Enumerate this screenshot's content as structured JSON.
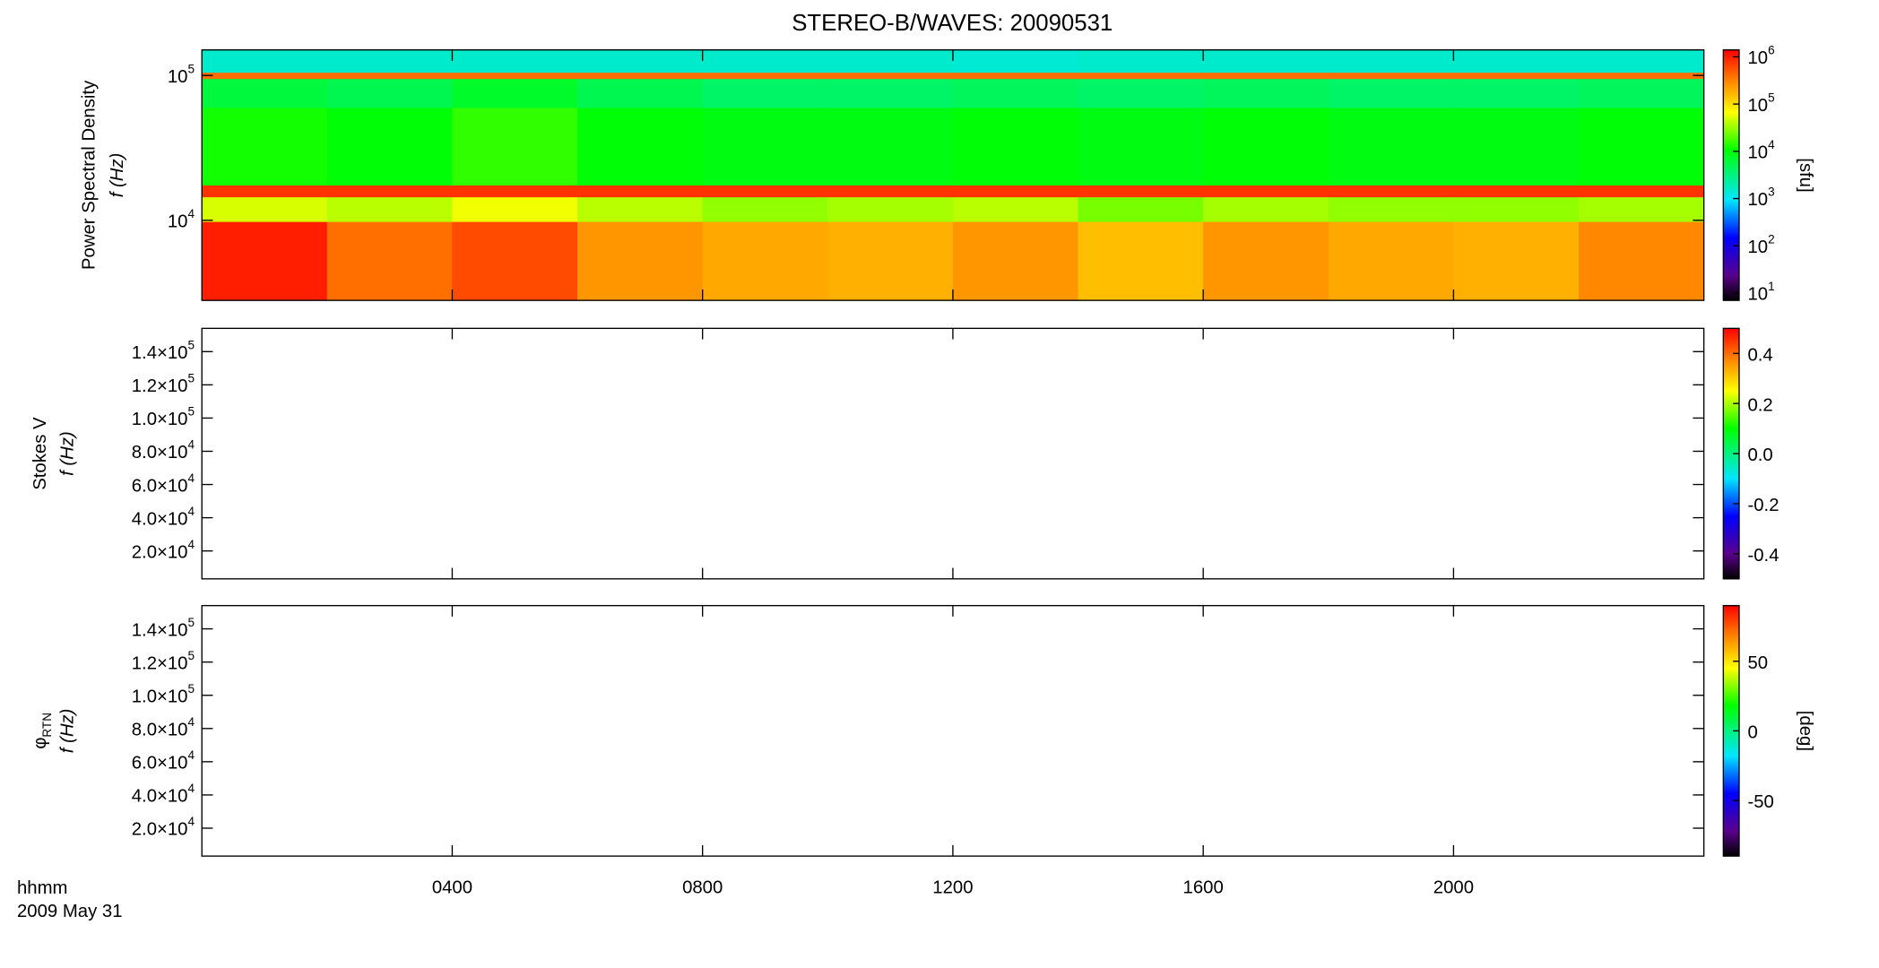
{
  "chart_data": [
    {
      "type": "heatmap",
      "title": "STEREO-B/WAVES: 20090531",
      "ylabel": "Power Spectral Density",
      "ylabel2": "f (Hz)",
      "ylog": true,
      "ylim": [
        2800,
        150000
      ],
      "yticks": [
        {
          "value": 10000,
          "label": "10",
          "exp": "4"
        },
        {
          "value": 100000,
          "label": "10",
          "exp": "5"
        }
      ],
      "xlim": [
        0,
        24
      ],
      "x_edges": [
        0,
        2,
        4,
        6,
        8,
        10,
        12,
        14,
        16,
        18,
        20,
        22,
        24
      ],
      "y_edges": [
        2800,
        9800,
        14500,
        17500,
        60000,
        95000,
        105000,
        150000
      ],
      "values": [
        [
          1000000,
          400000,
          600000,
          250000,
          200000,
          180000,
          250000,
          150000,
          250000,
          200000,
          180000,
          300000
        ],
        [
          50000,
          40000,
          60000,
          40000,
          30000,
          35000,
          40000,
          25000,
          35000,
          30000,
          30000,
          35000
        ],
        [
          800000,
          800000,
          800000,
          800000,
          800000,
          800000,
          800000,
          800000,
          800000,
          800000,
          800000,
          800000
        ],
        [
          12000,
          10000,
          15000,
          10000,
          9000,
          9000,
          10000,
          9000,
          10000,
          9000,
          9000,
          10000
        ],
        [
          6000,
          5000,
          7000,
          5000,
          4000,
          4000,
          4500,
          4000,
          4500,
          4000,
          4000,
          4500
        ],
        [
          400000,
          400000,
          400000,
          400000,
          400000,
          400000,
          400000,
          400000,
          400000,
          400000,
          400000,
          400000
        ],
        [
          1500,
          1500,
          1500,
          1500,
          1500,
          1500,
          1400,
          1500,
          1500,
          1500,
          1500,
          1500
        ]
      ],
      "clog": true,
      "clim": [
        7,
        1400000
      ],
      "cticks": [
        {
          "value": 10,
          "label": "10",
          "exp": "1"
        },
        {
          "value": 100,
          "label": "10",
          "exp": "2"
        },
        {
          "value": 1000,
          "label": "10",
          "exp": "3"
        },
        {
          "value": 10000,
          "label": "10",
          "exp": "4"
        },
        {
          "value": 100000,
          "label": "10",
          "exp": "5"
        },
        {
          "value": 1000000,
          "label": "10",
          "exp": "6"
        }
      ],
      "clabel": "[sfu]"
    },
    {
      "type": "heatmap",
      "ylabel": "Stokes V",
      "ylabel2": "f (Hz)",
      "ylog": false,
      "ylim": [
        3200,
        154000
      ],
      "yticks": [
        {
          "value": 20000,
          "label": "2.0×10",
          "exp": "4"
        },
        {
          "value": 40000,
          "label": "4.0×10",
          "exp": "4"
        },
        {
          "value": 60000,
          "label": "6.0×10",
          "exp": "4"
        },
        {
          "value": 80000,
          "label": "8.0×10",
          "exp": "4"
        },
        {
          "value": 100000,
          "label": "1.0×10",
          "exp": "5"
        },
        {
          "value": 120000,
          "label": "1.2×10",
          "exp": "5"
        },
        {
          "value": 140000,
          "label": "1.4×10",
          "exp": "5"
        }
      ],
      "xlim": [
        0,
        24
      ],
      "clog": false,
      "clim": [
        -0.5,
        0.5
      ],
      "cticks": [
        -0.4,
        -0.2,
        {
          "value": 0,
          "label": "0.0"
        },
        0.2,
        0.4
      ]
    },
    {
      "type": "heatmap",
      "ylabel": "φ",
      "ylabel_sub": "RTN",
      "ylabel2": "f (Hz)",
      "ylog": false,
      "ylim": [
        3200,
        154000
      ],
      "yticks": [
        {
          "value": 20000,
          "label": "2.0×10",
          "exp": "4"
        },
        {
          "value": 40000,
          "label": "4.0×10",
          "exp": "4"
        },
        {
          "value": 60000,
          "label": "6.0×10",
          "exp": "4"
        },
        {
          "value": 80000,
          "label": "8.0×10",
          "exp": "4"
        },
        {
          "value": 100000,
          "label": "1.0×10",
          "exp": "5"
        },
        {
          "value": 120000,
          "label": "1.2×10",
          "exp": "5"
        },
        {
          "value": 140000,
          "label": "1.4×10",
          "exp": "5"
        }
      ],
      "xlim": [
        0,
        24
      ],
      "xticks": [
        {
          "value": 4,
          "label": "0400"
        },
        {
          "value": 8,
          "label": "0800"
        },
        {
          "value": 12,
          "label": "1200"
        },
        {
          "value": 16,
          "label": "1600"
        },
        {
          "value": 20,
          "label": "2000"
        }
      ],
      "xlabel": "hhmm",
      "xlabel2": "2009 May 31",
      "clog": false,
      "clim": [
        -90,
        90
      ],
      "cticks": [
        -50,
        0,
        50
      ],
      "clabel": "[deg]"
    }
  ]
}
